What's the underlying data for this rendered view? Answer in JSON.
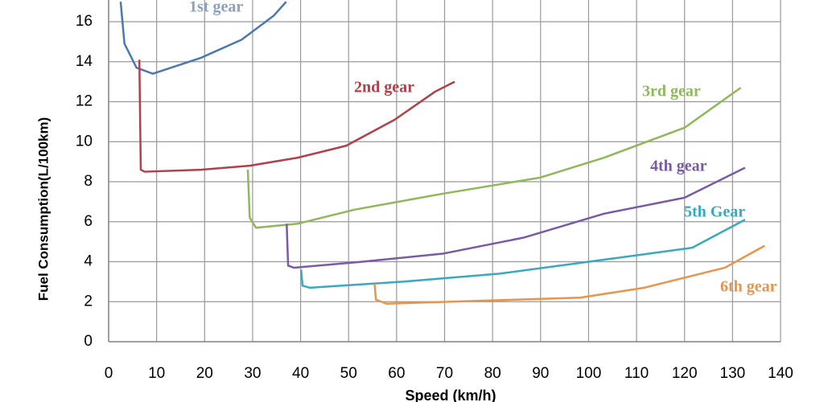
{
  "chart_data": {
    "type": "line",
    "x_label": "Speed (km/h)",
    "y_label": "Fuel Consumption(L/100km)",
    "xlim": [
      0,
      140
    ],
    "xticks": [
      0,
      10,
      20,
      30,
      40,
      50,
      60,
      70,
      80,
      90,
      100,
      110,
      120,
      130,
      140
    ],
    "ylim": [
      0,
      17
    ],
    "yticks": [
      0,
      2,
      4,
      6,
      8,
      10,
      12,
      14,
      16
    ],
    "grid": true,
    "series": [
      {
        "name": "1st gear",
        "color": "#4a78b0",
        "x": [
          2.5,
          3.3,
          5.8,
          9.2,
          19.3,
          27.7,
          34.4,
          37
        ],
        "values": [
          17,
          14.9,
          13.7,
          13.4,
          14.2,
          15.1,
          16.3,
          17
        ]
      },
      {
        "name": "2nd gear",
        "color": "#b0404a",
        "x": [
          6.4,
          6.7,
          7.5,
          19.3,
          29.4,
          39.4,
          49.5,
          59.6,
          68,
          72.1
        ],
        "values": [
          14.1,
          8.6,
          8.5,
          8.6,
          8.8,
          9.2,
          9.8,
          11.1,
          12.5,
          13.0
        ]
      },
      {
        "name": "3rd gear",
        "color": "#8fb85a",
        "x": [
          29,
          29.4,
          30.7,
          39.4,
          51.2,
          69.6,
          89.8,
          103.2,
          120,
          131.7
        ],
        "values": [
          8.6,
          6.2,
          5.7,
          5.9,
          6.6,
          7.4,
          8.2,
          9.2,
          10.7,
          12.7
        ]
      },
      {
        "name": "4th gear",
        "color": "#7a5aa6",
        "x": [
          37.1,
          37.4,
          38.6,
          52.9,
          69.6,
          86.4,
          103.2,
          120,
          132.6
        ],
        "values": [
          5.9,
          3.8,
          3.7,
          4.0,
          4.4,
          5.2,
          6.4,
          7.2,
          8.7
        ]
      },
      {
        "name": "5th Gear",
        "color": "#3aa8c0",
        "x": [
          40.1,
          40.4,
          41.9,
          61.2,
          81.4,
          103.2,
          121.6,
          132.6
        ],
        "values": [
          3.6,
          2.8,
          2.7,
          3.0,
          3.4,
          4.1,
          4.7,
          6.1
        ]
      },
      {
        "name": "6th gear",
        "color": "#e8944a",
        "x": [
          55.4,
          55.7,
          57.9,
          78,
          98.2,
          111.6,
          128.4,
          136.7
        ],
        "values": [
          2.9,
          2.1,
          1.9,
          2.05,
          2.2,
          2.7,
          3.7,
          4.8
        ]
      }
    ]
  }
}
